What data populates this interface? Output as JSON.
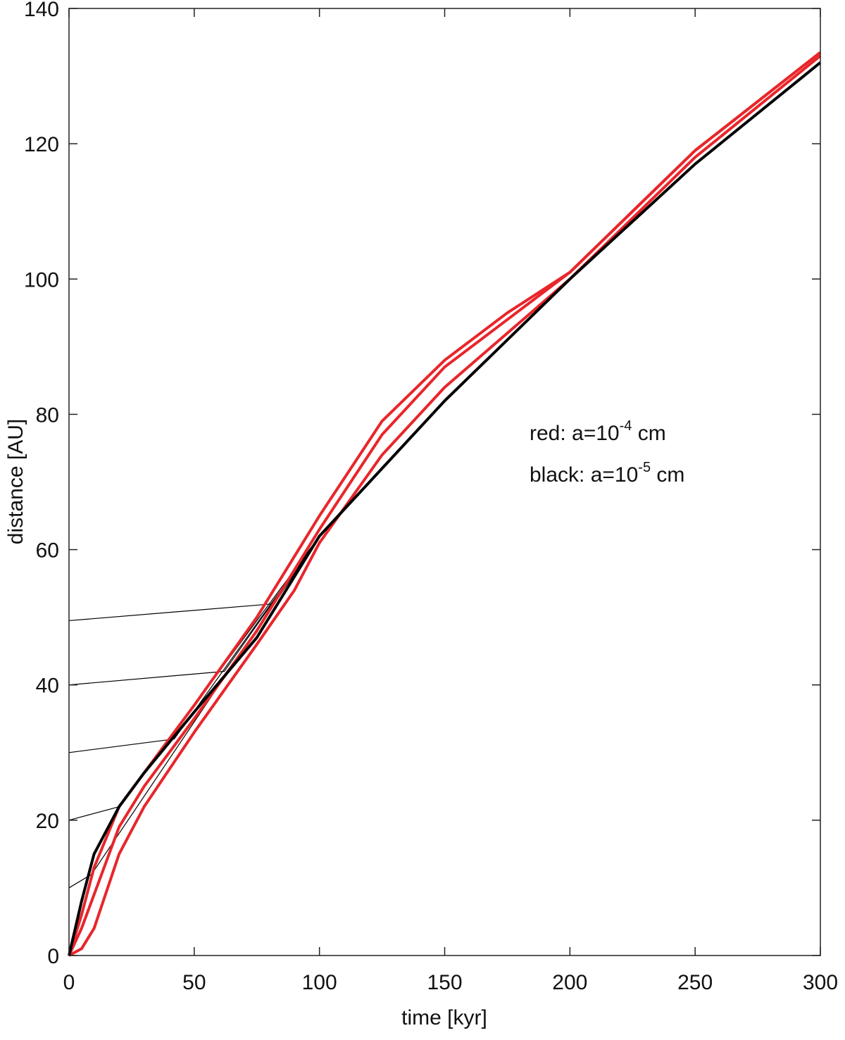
{
  "chart_data": {
    "type": "line",
    "xlabel": "time [kyr]",
    "ylabel": "distance  [AU]",
    "xlim": [
      0,
      300
    ],
    "ylim": [
      0,
      140
    ],
    "xticks": [
      0,
      50,
      100,
      150,
      200,
      250,
      300
    ],
    "yticks": [
      0,
      20,
      40,
      60,
      80,
      100,
      120,
      140
    ],
    "grid": false,
    "annotations": [
      {
        "text": "red: a=10",
        "sup": "-4",
        "suffix": " cm"
      },
      {
        "text": "black: a=10",
        "sup": "-5",
        "suffix": " cm"
      }
    ],
    "series": [
      {
        "color": "#000000",
        "width": 1.2,
        "x": [
          0,
          82,
          100,
          150,
          200,
          250,
          300
        ],
        "values": [
          49.5,
          52,
          62,
          82,
          100,
          117,
          132
        ]
      },
      {
        "color": "#000000",
        "width": 1.2,
        "x": [
          0,
          62,
          100,
          150,
          200,
          250,
          300
        ],
        "values": [
          40,
          42,
          62,
          82,
          100,
          117,
          132
        ]
      },
      {
        "color": "#000000",
        "width": 1.2,
        "x": [
          0,
          42,
          100,
          150,
          200,
          250,
          300
        ],
        "values": [
          30,
          32,
          62,
          82,
          100,
          117,
          132
        ]
      },
      {
        "color": "#000000",
        "width": 1.2,
        "x": [
          0,
          20,
          100,
          150,
          200,
          250,
          300
        ],
        "values": [
          20,
          22,
          62,
          82,
          100,
          117,
          132
        ]
      },
      {
        "color": "#000000",
        "width": 1.2,
        "x": [
          0,
          9,
          100,
          150,
          200,
          250,
          300
        ],
        "values": [
          10,
          12,
          62,
          82,
          100,
          117,
          132
        ]
      },
      {
        "color": "#e8262b",
        "width": 4,
        "x": [
          0,
          5,
          10,
          20,
          30,
          50,
          75,
          90,
          100,
          125,
          150,
          175,
          200,
          250,
          300
        ],
        "values": [
          0,
          1,
          4,
          15,
          22,
          33,
          46,
          54,
          61,
          74,
          84,
          92,
          100,
          118,
          133
        ]
      },
      {
        "color": "#e8262b",
        "width": 4,
        "x": [
          0,
          5,
          10,
          20,
          30,
          50,
          75,
          90,
          100,
          125,
          150,
          175,
          200,
          250,
          300
        ],
        "values": [
          0,
          4,
          9,
          19,
          25,
          35,
          48,
          57,
          63,
          77,
          87,
          94,
          101,
          119,
          133.5
        ]
      },
      {
        "color": "#e8262b",
        "width": 4,
        "x": [
          0,
          5,
          10,
          20,
          30,
          50,
          75,
          90,
          100,
          125,
          150,
          175,
          200,
          250,
          300
        ],
        "values": [
          0,
          6,
          13,
          22,
          27,
          37,
          50,
          59,
          65,
          79,
          88,
          95,
          101,
          119,
          133.5
        ]
      },
      {
        "color": "#000000",
        "width": 4,
        "x": [
          0,
          5,
          10,
          20,
          30,
          50,
          75,
          90,
          100,
          125,
          150,
          175,
          200,
          250,
          300
        ],
        "values": [
          0,
          8,
          15,
          22,
          27,
          36,
          47,
          56,
          62,
          72,
          82,
          91,
          100,
          117,
          132
        ]
      }
    ]
  }
}
